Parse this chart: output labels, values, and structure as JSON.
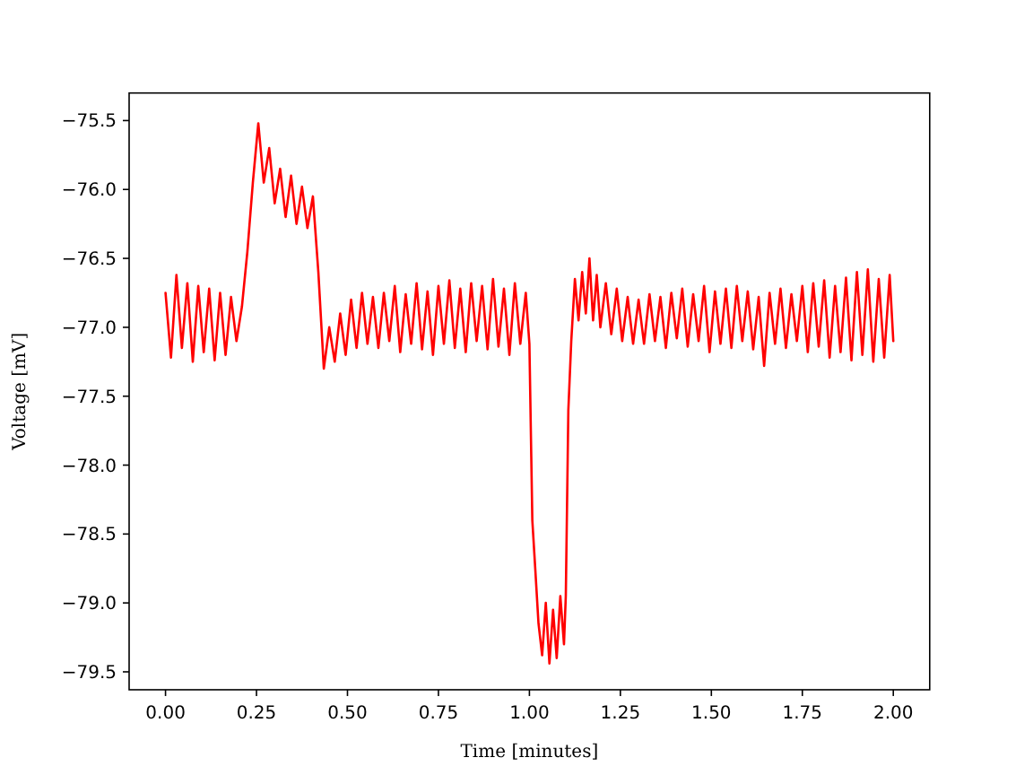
{
  "chart_data": {
    "type": "line",
    "xlabel": "Time [minutes]",
    "ylabel": "Voltage [mV]",
    "color": "#ff0000",
    "x": [
      0,
      0.015,
      0.03,
      0.045,
      0.06,
      0.075,
      0.09,
      0.105,
      0.12,
      0.135,
      0.15,
      0.165,
      0.18,
      0.195,
      0.21,
      0.225,
      0.24,
      0.255,
      0.27,
      0.285,
      0.3,
      0.315,
      0.33,
      0.345,
      0.36,
      0.375,
      0.39,
      0.405,
      0.42,
      0.435,
      0.45,
      0.465,
      0.48,
      0.495,
      0.51,
      0.525,
      0.54,
      0.555,
      0.57,
      0.585,
      0.6,
      0.615,
      0.63,
      0.645,
      0.66,
      0.675,
      0.69,
      0.705,
      0.72,
      0.735,
      0.75,
      0.765,
      0.78,
      0.795,
      0.81,
      0.825,
      0.84,
      0.855,
      0.87,
      0.885,
      0.9,
      0.915,
      0.93,
      0.945,
      0.96,
      0.975,
      0.99,
      1.0,
      1.008,
      1.016,
      1.025,
      1.035,
      1.045,
      1.055,
      1.065,
      1.075,
      1.085,
      1.095,
      1.1,
      1.107,
      1.115,
      1.125,
      1.135,
      1.145,
      1.155,
      1.165,
      1.175,
      1.185,
      1.195,
      1.21,
      1.225,
      1.24,
      1.255,
      1.27,
      1.285,
      1.3,
      1.315,
      1.33,
      1.345,
      1.36,
      1.375,
      1.39,
      1.405,
      1.42,
      1.435,
      1.45,
      1.465,
      1.48,
      1.495,
      1.51,
      1.525,
      1.54,
      1.555,
      1.57,
      1.585,
      1.6,
      1.615,
      1.63,
      1.645,
      1.66,
      1.675,
      1.69,
      1.705,
      1.72,
      1.735,
      1.75,
      1.765,
      1.78,
      1.795,
      1.81,
      1.825,
      1.84,
      1.855,
      1.87,
      1.885,
      1.9,
      1.915,
      1.93,
      1.945,
      1.96,
      1.975,
      1.99,
      2.0
    ],
    "values": [
      -76.75,
      -77.22,
      -76.62,
      -77.15,
      -76.68,
      -77.25,
      -76.7,
      -77.18,
      -76.72,
      -77.24,
      -76.75,
      -77.2,
      -76.78,
      -77.1,
      -76.85,
      -76.45,
      -75.95,
      -75.52,
      -75.95,
      -75.7,
      -76.1,
      -75.85,
      -76.2,
      -75.9,
      -76.25,
      -75.98,
      -76.28,
      -76.05,
      -76.6,
      -77.3,
      -77.0,
      -77.25,
      -76.9,
      -77.2,
      -76.8,
      -77.15,
      -76.75,
      -77.12,
      -76.78,
      -77.15,
      -76.75,
      -77.1,
      -76.7,
      -77.18,
      -76.76,
      -77.12,
      -76.68,
      -77.16,
      -76.74,
      -77.2,
      -76.7,
      -77.12,
      -76.66,
      -77.15,
      -76.72,
      -77.18,
      -76.68,
      -77.1,
      -76.7,
      -77.16,
      -76.65,
      -77.14,
      -76.72,
      -77.2,
      -76.68,
      -77.12,
      -76.75,
      -77.12,
      -78.4,
      -78.75,
      -79.15,
      -79.38,
      -79.0,
      -79.44,
      -79.05,
      -79.4,
      -78.95,
      -79.3,
      -78.95,
      -77.6,
      -77.1,
      -76.65,
      -76.95,
      -76.6,
      -76.9,
      -76.5,
      -76.95,
      -76.62,
      -77.0,
      -76.68,
      -77.05,
      -76.72,
      -77.1,
      -76.78,
      -77.12,
      -76.8,
      -77.12,
      -76.76,
      -77.1,
      -76.78,
      -77.15,
      -76.75,
      -77.08,
      -76.72,
      -77.14,
      -76.76,
      -77.1,
      -76.7,
      -77.18,
      -76.74,
      -77.12,
      -76.72,
      -77.15,
      -76.7,
      -77.1,
      -76.74,
      -77.16,
      -76.78,
      -77.28,
      -76.75,
      -77.12,
      -76.72,
      -77.15,
      -76.76,
      -77.1,
      -76.7,
      -77.18,
      -76.68,
      -77.14,
      -76.66,
      -77.22,
      -76.7,
      -77.18,
      -76.64,
      -77.24,
      -76.6,
      -77.2,
      -76.58,
      -77.25,
      -76.65,
      -77.22,
      -76.62,
      -77.1
    ],
    "xlim": [
      -0.1,
      2.1
    ],
    "ylim": [
      -79.63,
      -75.3
    ],
    "xticks": [
      {
        "value": 0,
        "label": "0.00"
      },
      {
        "value": 0.25,
        "label": "0.25"
      },
      {
        "value": 0.5,
        "label": "0.50"
      },
      {
        "value": 0.75,
        "label": "0.75"
      },
      {
        "value": 1,
        "label": "1.00"
      },
      {
        "value": 1.25,
        "label": "1.25"
      },
      {
        "value": 1.5,
        "label": "1.50"
      },
      {
        "value": 1.75,
        "label": "1.75"
      },
      {
        "value": 2,
        "label": "2.00"
      }
    ],
    "yticks": [
      {
        "value": -75.5,
        "label": "−75.5"
      },
      {
        "value": -76,
        "label": "−76.0"
      },
      {
        "value": -76.5,
        "label": "−76.5"
      },
      {
        "value": -77,
        "label": "−77.0"
      },
      {
        "value": -77.5,
        "label": "−77.5"
      },
      {
        "value": -78,
        "label": "−78.0"
      },
      {
        "value": -78.5,
        "label": "−78.5"
      },
      {
        "value": -79,
        "label": "−79.0"
      },
      {
        "value": -79.5,
        "label": "−79.5"
      }
    ]
  }
}
